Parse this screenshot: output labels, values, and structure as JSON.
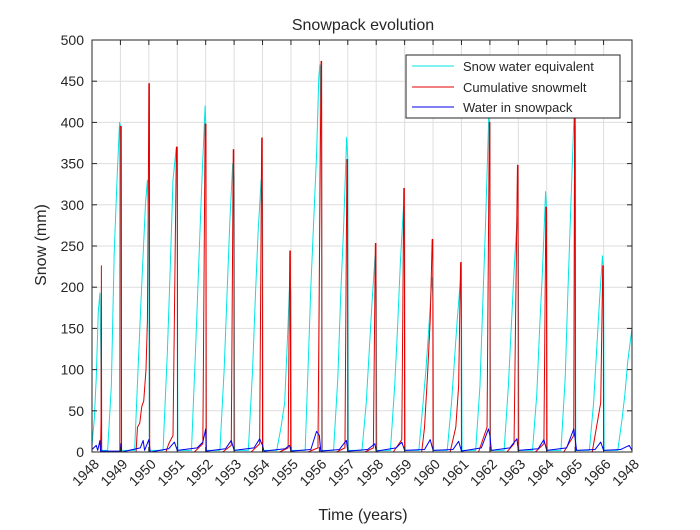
{
  "chart_data": {
    "type": "line",
    "title": "Snowpack evolution",
    "xlabel": "Time (years)",
    "ylabel": "Snow (mm)",
    "ylim": [
      0,
      500
    ],
    "xlim": [
      0,
      19
    ],
    "yticks": [
      0,
      50,
      100,
      150,
      200,
      250,
      300,
      350,
      400,
      450,
      500
    ],
    "xtick_labels": [
      "1948",
      "1949",
      "1950",
      "1951",
      "1952",
      "1953",
      "1954",
      "1955",
      "1956",
      "1957",
      "1958",
      "1959",
      "1960",
      "1961",
      "1962",
      "1963",
      "1964",
      "1965",
      "1966",
      "1948"
    ],
    "grid": true,
    "legend_position": "top-right",
    "colors": {
      "swe": "#00e5e5",
      "melt": "#e00000",
      "water": "#0000ee",
      "grid": "#dedede",
      "axis": "#262626"
    },
    "series": [
      {
        "name": "Snow water equivalent",
        "color": "#00e5e5",
        "points": [
          [
            0.0,
            8
          ],
          [
            0.08,
            40
          ],
          [
            0.15,
            90
          ],
          [
            0.22,
            170
          ],
          [
            0.28,
            193
          ],
          [
            0.31,
            120
          ],
          [
            0.34,
            2
          ],
          [
            0.55,
            2
          ],
          [
            0.68,
            80
          ],
          [
            0.78,
            240
          ],
          [
            0.88,
            330
          ],
          [
            0.97,
            400
          ],
          [
            1.02,
            392
          ],
          [
            1.04,
            2
          ],
          [
            1.5,
            2
          ],
          [
            1.62,
            100
          ],
          [
            1.72,
            180
          ],
          [
            1.8,
            240
          ],
          [
            1.88,
            300
          ],
          [
            1.95,
            330
          ],
          [
            2.0,
            265
          ],
          [
            2.02,
            2
          ],
          [
            2.5,
            2
          ],
          [
            2.65,
            120
          ],
          [
            2.75,
            220
          ],
          [
            2.85,
            330
          ],
          [
            2.96,
            368
          ],
          [
            3.0,
            350
          ],
          [
            3.02,
            2
          ],
          [
            3.5,
            2
          ],
          [
            3.65,
            130
          ],
          [
            3.78,
            250
          ],
          [
            3.88,
            340
          ],
          [
            3.98,
            420
          ],
          [
            4.0,
            400
          ],
          [
            4.02,
            2
          ],
          [
            4.5,
            2
          ],
          [
            4.65,
            100
          ],
          [
            4.75,
            190
          ],
          [
            4.85,
            280
          ],
          [
            4.95,
            350
          ],
          [
            5.0,
            335
          ],
          [
            5.02,
            2
          ],
          [
            5.5,
            2
          ],
          [
            5.65,
            100
          ],
          [
            5.75,
            190
          ],
          [
            5.85,
            270
          ],
          [
            5.95,
            330
          ],
          [
            6.0,
            310
          ],
          [
            6.02,
            2
          ],
          [
            6.5,
            2
          ],
          [
            6.65,
            30
          ],
          [
            6.78,
            60
          ],
          [
            6.88,
            140
          ],
          [
            6.96,
            210
          ],
          [
            7.0,
            195
          ],
          [
            7.02,
            2
          ],
          [
            7.5,
            2
          ],
          [
            7.6,
            100
          ],
          [
            7.7,
            200
          ],
          [
            7.8,
            280
          ],
          [
            7.9,
            360
          ],
          [
            7.98,
            455
          ],
          [
            8.02,
            470
          ],
          [
            8.08,
            375
          ],
          [
            8.1,
            2
          ],
          [
            8.5,
            2
          ],
          [
            8.65,
            90
          ],
          [
            8.75,
            190
          ],
          [
            8.85,
            270
          ],
          [
            8.96,
            382
          ],
          [
            9.0,
            355
          ],
          [
            9.02,
            2
          ],
          [
            9.5,
            2
          ],
          [
            9.65,
            60
          ],
          [
            9.75,
            120
          ],
          [
            9.85,
            180
          ],
          [
            9.96,
            238
          ],
          [
            10.0,
            200
          ],
          [
            10.02,
            2
          ],
          [
            10.5,
            2
          ],
          [
            10.65,
            80
          ],
          [
            10.75,
            150
          ],
          [
            10.85,
            230
          ],
          [
            10.96,
            298
          ],
          [
            11.0,
            270
          ],
          [
            11.02,
            2
          ],
          [
            11.5,
            2
          ],
          [
            11.65,
            60
          ],
          [
            11.75,
            100
          ],
          [
            11.85,
            150
          ],
          [
            11.96,
            212
          ],
          [
            12.0,
            185
          ],
          [
            12.02,
            2
          ],
          [
            12.5,
            2
          ],
          [
            12.65,
            60
          ],
          [
            12.75,
            110
          ],
          [
            12.85,
            160
          ],
          [
            12.96,
            208
          ],
          [
            13.0,
            180
          ],
          [
            13.02,
            2
          ],
          [
            13.5,
            2
          ],
          [
            13.65,
            80
          ],
          [
            13.75,
            180
          ],
          [
            13.85,
            280
          ],
          [
            13.96,
            408
          ],
          [
            14.0,
            395
          ],
          [
            14.02,
            2
          ],
          [
            14.5,
            2
          ],
          [
            14.65,
            80
          ],
          [
            14.75,
            150
          ],
          [
            14.85,
            220
          ],
          [
            14.96,
            285
          ],
          [
            15.0,
            250
          ],
          [
            15.02,
            2
          ],
          [
            15.5,
            2
          ],
          [
            15.65,
            70
          ],
          [
            15.75,
            150
          ],
          [
            15.85,
            220
          ],
          [
            15.96,
            316
          ],
          [
            16.0,
            290
          ],
          [
            16.02,
            2
          ],
          [
            16.5,
            2
          ],
          [
            16.65,
            90
          ],
          [
            16.75,
            200
          ],
          [
            16.85,
            300
          ],
          [
            16.96,
            410
          ],
          [
            17.0,
            395
          ],
          [
            17.02,
            2
          ],
          [
            17.5,
            2
          ],
          [
            17.65,
            60
          ],
          [
            17.75,
            120
          ],
          [
            17.85,
            180
          ],
          [
            17.96,
            238
          ],
          [
            18.0,
            222
          ],
          [
            18.02,
            2
          ],
          [
            18.5,
            2
          ],
          [
            18.65,
            40
          ],
          [
            18.75,
            70
          ],
          [
            18.85,
            110
          ],
          [
            19.0,
            150
          ]
        ]
      },
      {
        "name": "Cumulative snowmelt",
        "color": "#e00000",
        "points": [
          [
            0.3,
            0
          ],
          [
            0.32,
            40
          ],
          [
            0.33,
            226
          ],
          [
            0.34,
            0
          ],
          [
            0.98,
            0
          ],
          [
            0.99,
            395
          ],
          [
            1.03,
            395
          ],
          [
            1.04,
            0
          ],
          [
            1.55,
            0
          ],
          [
            1.6,
            30
          ],
          [
            1.68,
            35
          ],
          [
            1.75,
            55
          ],
          [
            1.82,
            62
          ],
          [
            1.9,
            100
          ],
          [
            1.95,
            160
          ],
          [
            1.98,
            300
          ],
          [
            2.0,
            447
          ],
          [
            2.02,
            447
          ],
          [
            2.03,
            0
          ],
          [
            2.6,
            0
          ],
          [
            2.7,
            10
          ],
          [
            2.85,
            20
          ],
          [
            2.97,
            370
          ],
          [
            3.0,
            370
          ],
          [
            3.01,
            0
          ],
          [
            3.6,
            0
          ],
          [
            3.9,
            10
          ],
          [
            3.98,
            398
          ],
          [
            4.01,
            398
          ],
          [
            4.02,
            0
          ],
          [
            4.6,
            0
          ],
          [
            4.9,
            8
          ],
          [
            4.97,
            367
          ],
          [
            4.99,
            367
          ],
          [
            5.0,
            0
          ],
          [
            5.6,
            0
          ],
          [
            5.9,
            10
          ],
          [
            5.97,
            381
          ],
          [
            5.99,
            381
          ],
          [
            6.0,
            0
          ],
          [
            6.6,
            0
          ],
          [
            6.9,
            5
          ],
          [
            6.96,
            244
          ],
          [
            6.98,
            244
          ],
          [
            6.99,
            0
          ],
          [
            7.6,
            0
          ],
          [
            7.95,
            5
          ],
          [
            8.06,
            474
          ],
          [
            8.08,
            474
          ],
          [
            8.09,
            0
          ],
          [
            8.6,
            0
          ],
          [
            8.9,
            5
          ],
          [
            8.97,
            355
          ],
          [
            8.99,
            355
          ],
          [
            9.0,
            0
          ],
          [
            9.6,
            0
          ],
          [
            9.9,
            5
          ],
          [
            9.97,
            253
          ],
          [
            9.99,
            253
          ],
          [
            10.0,
            0
          ],
          [
            10.6,
            0
          ],
          [
            10.9,
            15
          ],
          [
            10.97,
            320
          ],
          [
            10.99,
            320
          ],
          [
            11.0,
            0
          ],
          [
            11.6,
            0
          ],
          [
            11.7,
            30
          ],
          [
            11.8,
            90
          ],
          [
            11.9,
            160
          ],
          [
            11.97,
            258
          ],
          [
            11.99,
            258
          ],
          [
            12.0,
            0
          ],
          [
            12.6,
            0
          ],
          [
            12.8,
            30
          ],
          [
            12.9,
            80
          ],
          [
            12.97,
            230
          ],
          [
            12.99,
            230
          ],
          [
            13.0,
            0
          ],
          [
            13.6,
            0
          ],
          [
            13.9,
            30
          ],
          [
            13.98,
            400
          ],
          [
            14.0,
            400
          ],
          [
            14.01,
            0
          ],
          [
            14.6,
            0
          ],
          [
            14.85,
            10
          ],
          [
            14.97,
            348
          ],
          [
            14.99,
            348
          ],
          [
            15.0,
            0
          ],
          [
            15.6,
            0
          ],
          [
            15.9,
            10
          ],
          [
            15.97,
            297
          ],
          [
            15.99,
            297
          ],
          [
            16.0,
            0
          ],
          [
            16.6,
            0
          ],
          [
            16.95,
            20
          ],
          [
            16.98,
            410
          ],
          [
            17.0,
            410
          ],
          [
            17.01,
            0
          ],
          [
            17.6,
            0
          ],
          [
            17.9,
            60
          ],
          [
            17.97,
            226
          ],
          [
            17.99,
            226
          ],
          [
            18.0,
            0
          ]
        ]
      },
      {
        "name": "Water in snowpack",
        "color": "#0000ee",
        "points": [
          [
            0.0,
            3
          ],
          [
            0.15,
            8
          ],
          [
            0.2,
            2
          ],
          [
            0.28,
            14
          ],
          [
            0.3,
            1
          ],
          [
            1.0,
            1
          ],
          [
            1.02,
            10
          ],
          [
            1.04,
            0
          ],
          [
            1.7,
            5
          ],
          [
            1.8,
            14
          ],
          [
            1.85,
            2
          ],
          [
            2.0,
            15
          ],
          [
            2.05,
            0
          ],
          [
            2.7,
            4
          ],
          [
            2.9,
            12
          ],
          [
            3.0,
            2
          ],
          [
            3.7,
            5
          ],
          [
            3.9,
            12
          ],
          [
            4.0,
            28
          ],
          [
            4.02,
            1
          ],
          [
            4.7,
            4
          ],
          [
            4.9,
            14
          ],
          [
            5.0,
            2
          ],
          [
            5.7,
            5
          ],
          [
            5.9,
            16
          ],
          [
            6.0,
            8
          ],
          [
            6.05,
            1
          ],
          [
            6.8,
            4
          ],
          [
            6.95,
            8
          ],
          [
            7.0,
            1
          ],
          [
            7.7,
            3
          ],
          [
            7.9,
            25
          ],
          [
            8.0,
            20
          ],
          [
            8.05,
            1
          ],
          [
            8.7,
            3
          ],
          [
            8.95,
            14
          ],
          [
            9.0,
            1
          ],
          [
            9.7,
            3
          ],
          [
            9.95,
            10
          ],
          [
            10.0,
            1
          ],
          [
            10.7,
            5
          ],
          [
            10.9,
            12
          ],
          [
            11.0,
            2
          ],
          [
            11.7,
            3
          ],
          [
            11.9,
            15
          ],
          [
            12.0,
            2
          ],
          [
            12.7,
            3
          ],
          [
            12.9,
            13
          ],
          [
            13.0,
            1
          ],
          [
            13.7,
            5
          ],
          [
            13.95,
            28
          ],
          [
            14.0,
            20
          ],
          [
            14.05,
            2
          ],
          [
            14.7,
            5
          ],
          [
            14.95,
            16
          ],
          [
            15.0,
            2
          ],
          [
            15.7,
            4
          ],
          [
            15.9,
            15
          ],
          [
            16.0,
            2
          ],
          [
            16.7,
            5
          ],
          [
            16.95,
            28
          ],
          [
            17.0,
            16
          ],
          [
            17.05,
            2
          ],
          [
            17.7,
            3
          ],
          [
            17.9,
            12
          ],
          [
            18.0,
            2
          ],
          [
            18.6,
            3
          ],
          [
            18.9,
            8
          ],
          [
            19.0,
            2
          ]
        ]
      }
    ]
  }
}
